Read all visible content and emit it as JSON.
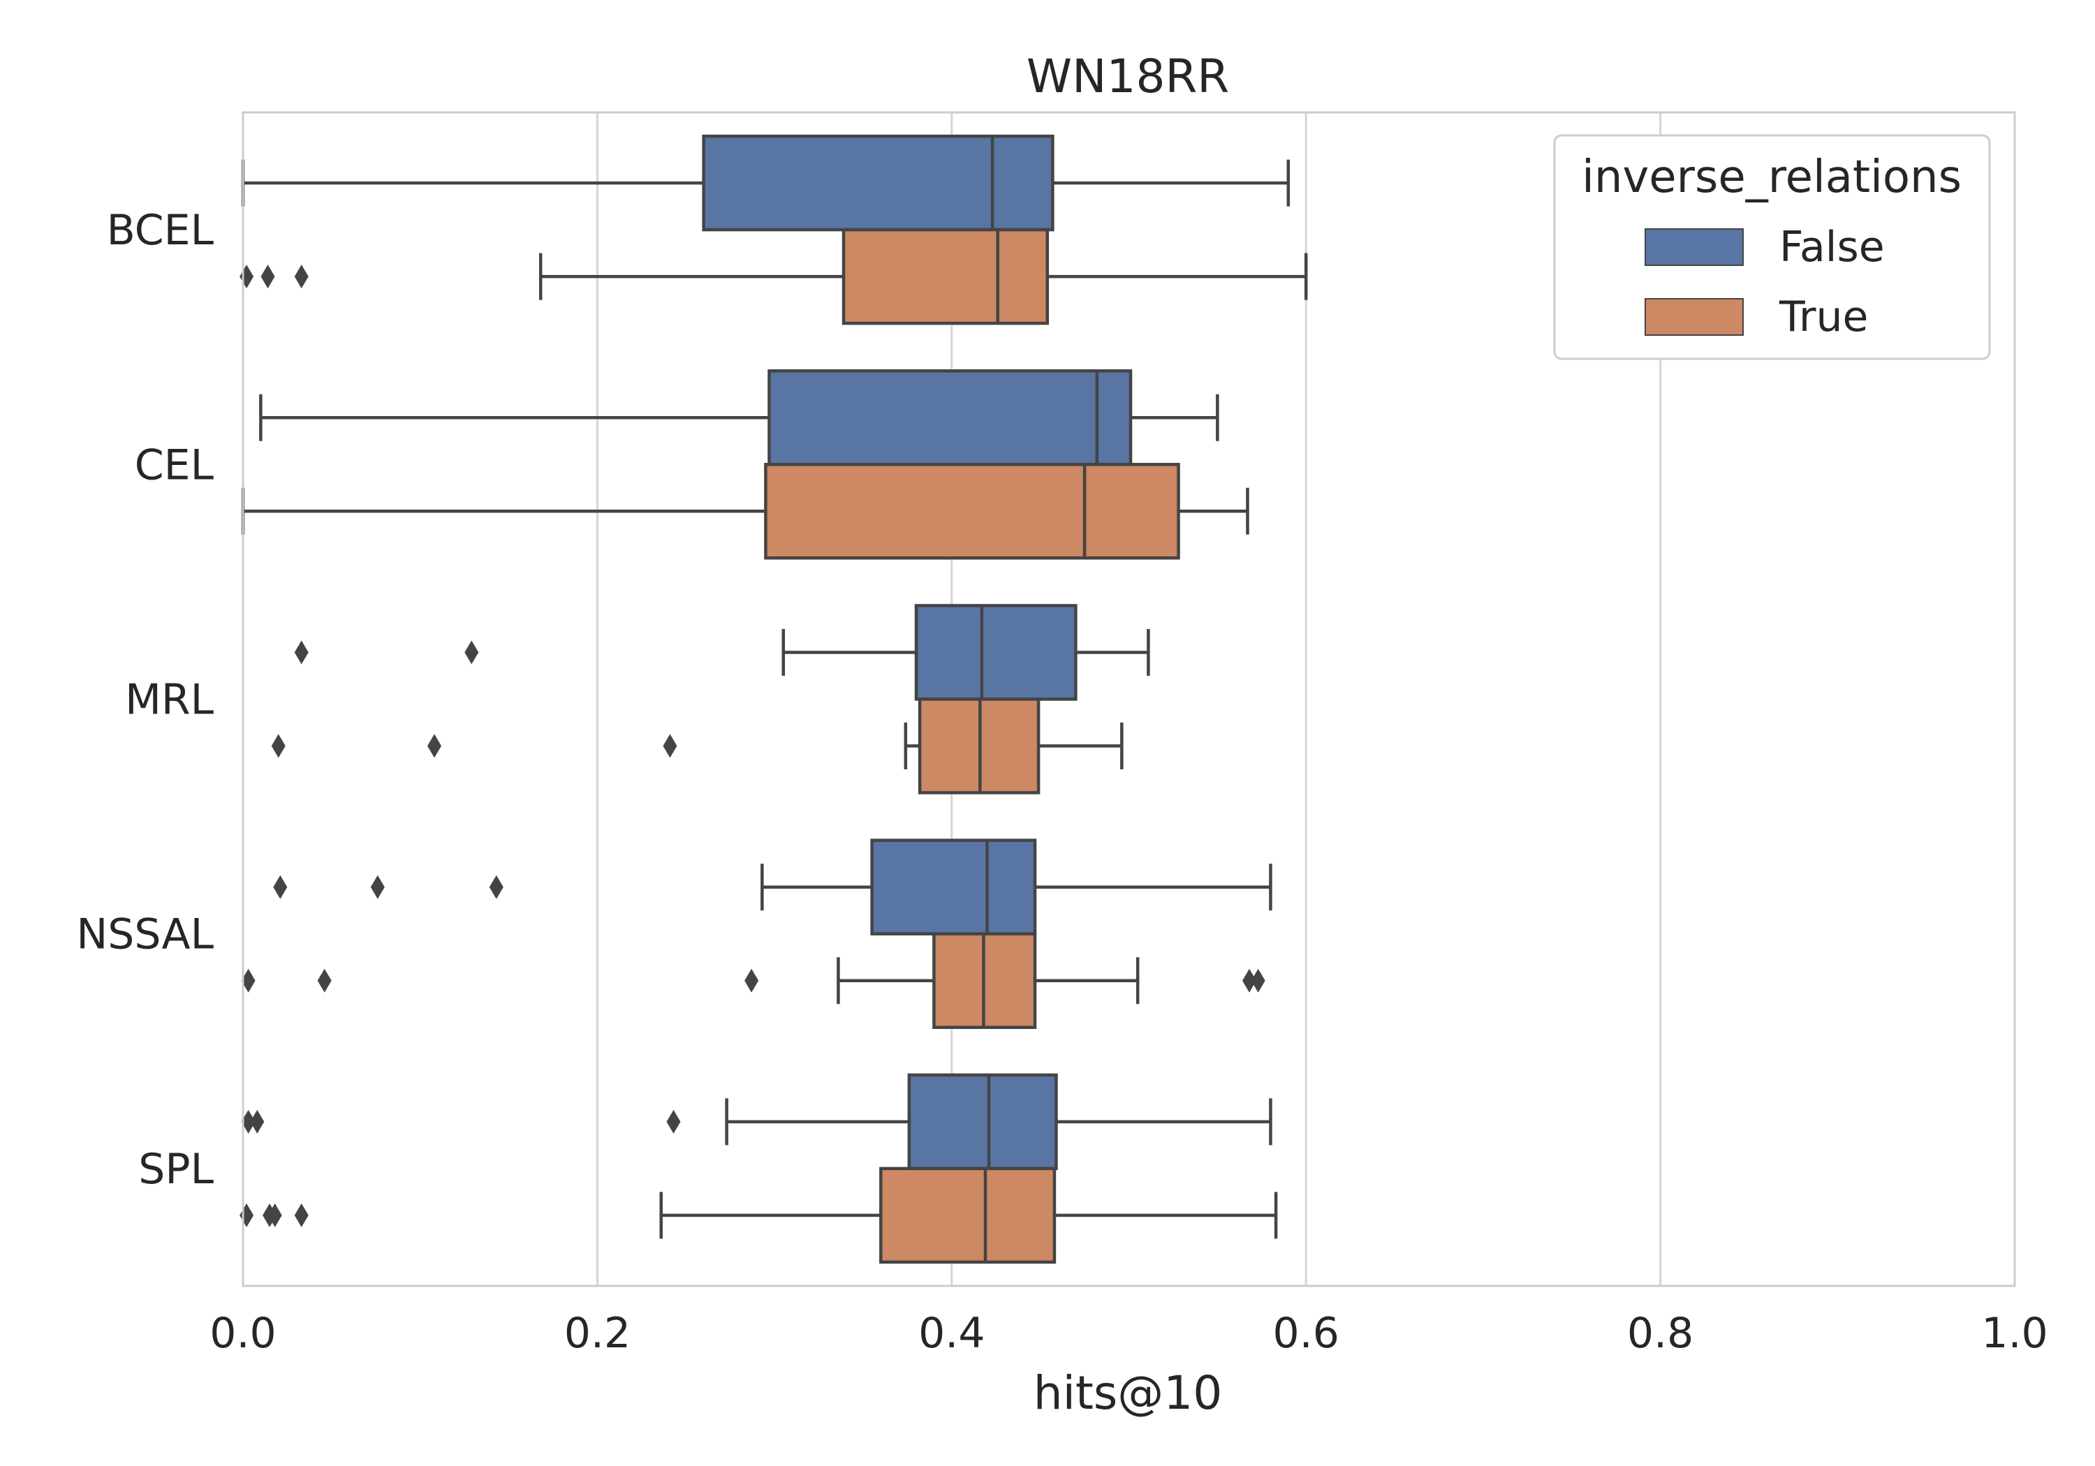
{
  "chart_data": {
    "type": "boxplot",
    "orientation": "horizontal",
    "title": "WN18RR",
    "xlabel": "hits@10",
    "ylabel": "",
    "xlim": [
      0.0,
      1.0
    ],
    "xticks": [
      0.0,
      0.2,
      0.4,
      0.6,
      0.8,
      1.0
    ],
    "xtick_labels": [
      "0.0",
      "0.2",
      "0.4",
      "0.6",
      "0.8",
      "1.0"
    ],
    "grid": "vertical",
    "categories": [
      "BCEL",
      "CEL",
      "MRL",
      "NSSAL",
      "SPL"
    ],
    "legend": {
      "title": "inverse_relations",
      "position": "top-right",
      "entries": [
        "False",
        "True"
      ]
    },
    "colors": {
      "False": "#5875a4",
      "True": "#cc8963",
      "line": "#444444",
      "grid": "#d5d5d5",
      "frame": "#cccccc"
    },
    "series": [
      {
        "name": "False",
        "boxes": [
          {
            "category": "BCEL",
            "whislo": 0.0,
            "q1": 0.26,
            "med": 0.423,
            "q3": 0.457,
            "whishi": 0.59,
            "fliers": []
          },
          {
            "category": "CEL",
            "whislo": 0.01,
            "q1": 0.297,
            "med": 0.482,
            "q3": 0.501,
            "whishi": 0.55,
            "fliers": []
          },
          {
            "category": "MRL",
            "whislo": 0.305,
            "q1": 0.38,
            "med": 0.417,
            "q3": 0.47,
            "whishi": 0.511,
            "fliers": [
              0.033,
              0.129
            ]
          },
          {
            "category": "NSSAL",
            "whislo": 0.293,
            "q1": 0.355,
            "med": 0.42,
            "q3": 0.447,
            "whishi": 0.58,
            "fliers": [
              0.021,
              0.076,
              0.143
            ]
          },
          {
            "category": "SPL",
            "whislo": 0.273,
            "q1": 0.376,
            "med": 0.421,
            "q3": 0.459,
            "whishi": 0.58,
            "fliers": [
              0.003,
              0.008,
              0.243
            ]
          }
        ]
      },
      {
        "name": "True",
        "boxes": [
          {
            "category": "BCEL",
            "whislo": 0.168,
            "q1": 0.339,
            "med": 0.426,
            "q3": 0.454,
            "whishi": 0.6,
            "fliers": [
              0.002,
              0.014,
              0.033
            ]
          },
          {
            "category": "CEL",
            "whislo": 0.0,
            "q1": 0.295,
            "med": 0.475,
            "q3": 0.528,
            "whishi": 0.567,
            "fliers": []
          },
          {
            "category": "MRL",
            "whislo": 0.374,
            "q1": 0.382,
            "med": 0.416,
            "q3": 0.449,
            "whishi": 0.496,
            "fliers": [
              0.02,
              0.108,
              0.241
            ]
          },
          {
            "category": "NSSAL",
            "whislo": 0.336,
            "q1": 0.39,
            "med": 0.418,
            "q3": 0.447,
            "whishi": 0.505,
            "fliers": [
              0.003,
              0.046,
              0.287,
              0.568,
              0.573
            ]
          },
          {
            "category": "SPL",
            "whislo": 0.236,
            "q1": 0.36,
            "med": 0.419,
            "q3": 0.458,
            "whishi": 0.583,
            "fliers": [
              0.002,
              0.015,
              0.018,
              0.033
            ]
          }
        ]
      }
    ]
  }
}
